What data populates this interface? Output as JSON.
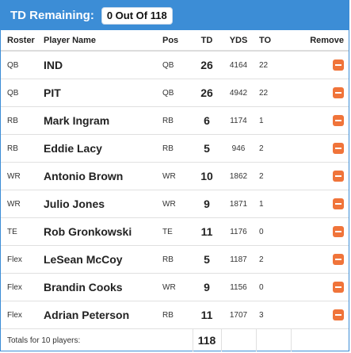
{
  "header": {
    "title": "TD Remaining:",
    "remaining": "0 Out Of 118"
  },
  "columns": {
    "roster": "Roster",
    "player": "Player Name",
    "pos": "Pos",
    "td": "TD",
    "yds": "YDS",
    "to": "TO",
    "remove": "Remove"
  },
  "rows": [
    {
      "roster": "QB",
      "player": "IND",
      "pos": "QB",
      "td": "26",
      "yds": "4164",
      "to": "22"
    },
    {
      "roster": "QB",
      "player": "PIT",
      "pos": "QB",
      "td": "26",
      "yds": "4942",
      "to": "22"
    },
    {
      "roster": "RB",
      "player": "Mark Ingram",
      "pos": "RB",
      "td": "6",
      "yds": "1174",
      "to": "1"
    },
    {
      "roster": "RB",
      "player": "Eddie Lacy",
      "pos": "RB",
      "td": "5",
      "yds": "946",
      "to": "2"
    },
    {
      "roster": "WR",
      "player": "Antonio Brown",
      "pos": "WR",
      "td": "10",
      "yds": "1862",
      "to": "2"
    },
    {
      "roster": "WR",
      "player": "Julio Jones",
      "pos": "WR",
      "td": "9",
      "yds": "1871",
      "to": "1"
    },
    {
      "roster": "TE",
      "player": "Rob Gronkowski",
      "pos": "TE",
      "td": "11",
      "yds": "1176",
      "to": "0"
    },
    {
      "roster": "Flex",
      "player": "LeSean McCoy",
      "pos": "RB",
      "td": "5",
      "yds": "1187",
      "to": "2"
    },
    {
      "roster": "Flex",
      "player": "Brandin Cooks",
      "pos": "WR",
      "td": "9",
      "yds": "1156",
      "to": "0"
    },
    {
      "roster": "Flex",
      "player": "Adrian Peterson",
      "pos": "RB",
      "td": "11",
      "yds": "1707",
      "to": "3"
    }
  ],
  "totals": {
    "label": "Totals for 10 players:",
    "td": "118"
  },
  "colors": {
    "header_bg": "#3c8dd6",
    "remove_button": "#f0743a"
  },
  "icons": {
    "remove": "minus-icon"
  }
}
